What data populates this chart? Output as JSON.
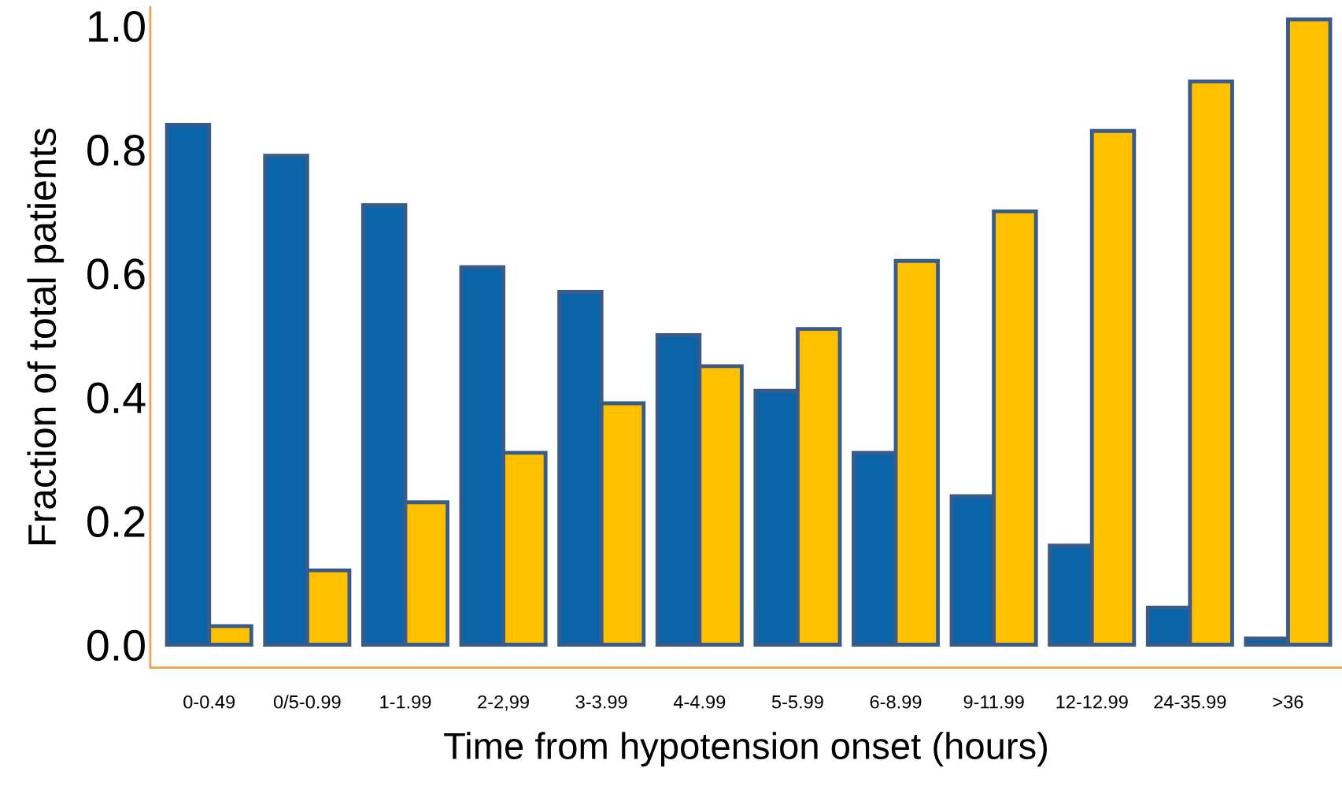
{
  "chart_data": {
    "type": "bar",
    "xlabel": "Time from hypotension onset (hours)",
    "ylabel": "Fraction of total patients",
    "categories": [
      "0-0.49",
      "0/5-0.99",
      "1-1.99",
      "2-2,99",
      "3-3.99",
      "4-4.99",
      "5-5.99",
      "6-8.99",
      "9-11.99",
      "12-12.99",
      "24-35.99",
      ">36"
    ],
    "series": [
      {
        "color": "#0a64a8",
        "values": [
          0.84,
          0.79,
          0.71,
          0.61,
          0.57,
          0.5,
          0.41,
          0.31,
          0.24,
          0.16,
          0.06,
          0.01
        ]
      },
      {
        "color": "#ffc000",
        "values": [
          0.03,
          0.12,
          0.23,
          0.31,
          0.39,
          0.45,
          0.51,
          0.62,
          0.7,
          0.83,
          0.91,
          1.01
        ]
      }
    ],
    "ylim": [
      -0.037,
      1.03
    ],
    "yticks": [
      {
        "value": 0,
        "label": "0.0"
      },
      {
        "value": 0.2,
        "label": "0.2"
      },
      {
        "value": 0.4,
        "label": "0.4"
      },
      {
        "value": 0.6,
        "label": "0.6"
      },
      {
        "value": 0.8,
        "label": "0.8"
      },
      {
        "value": 1,
        "label": "1.0"
      }
    ],
    "grid": false,
    "legend": false
  }
}
